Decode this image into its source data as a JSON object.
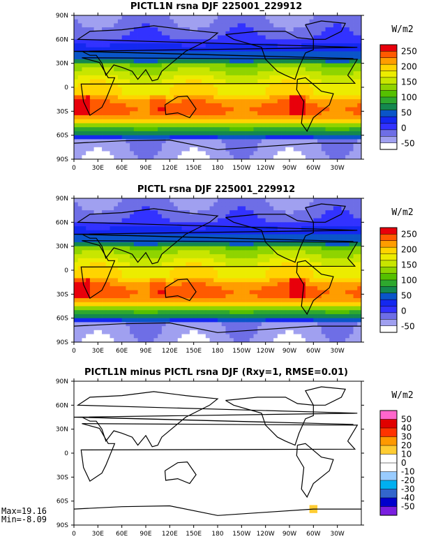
{
  "chart_data": [
    {
      "type": "heatmap",
      "title": "PICTL1N rsna DJF 225001_229912",
      "units": "W/m2",
      "xticks": [
        "0",
        "30E",
        "60E",
        "90E",
        "120E",
        "150E",
        "180",
        "150W",
        "120W",
        "90W",
        "60W",
        "30W"
      ],
      "yticks": [
        "90N",
        "60N",
        "30N",
        "0",
        "30S",
        "60S",
        "90S"
      ],
      "xlim": [
        0,
        360
      ],
      "ylim": [
        -90,
        90
      ],
      "colorbar": {
        "labels": [
          "250",
          "200",
          "150",
          "100",
          "50",
          "0",
          "-50"
        ],
        "colors": [
          "#e8000b",
          "#ff5a00",
          "#ff9d00",
          "#ffd400",
          "#ecec00",
          "#c8e600",
          "#8fd400",
          "#55c000",
          "#2ea82e",
          "#14884f",
          "#0a55c8",
          "#1428f0",
          "#3232ff",
          "#6e6ee6",
          "#a0a0f0",
          "#ffffff"
        ]
      },
      "values_summary": {
        "tropics_ocean": 200,
        "subtropics_south": 230,
        "northern_high_lat": 0,
        "antarctica": -25
      }
    },
    {
      "type": "heatmap",
      "title": "PICTL rsna DJF 225001_229912",
      "units": "W/m2",
      "xticks": [
        "0",
        "30E",
        "60E",
        "90E",
        "120E",
        "150E",
        "180",
        "150W",
        "120W",
        "90W",
        "60W",
        "30W"
      ],
      "yticks": [
        "90N",
        "60N",
        "30N",
        "0",
        "30S",
        "60S",
        "90S"
      ],
      "xlim": [
        0,
        360
      ],
      "ylim": [
        -90,
        90
      ],
      "colorbar": {
        "labels": [
          "250",
          "200",
          "150",
          "100",
          "50",
          "0",
          "-50"
        ],
        "colors": [
          "#e8000b",
          "#ff5a00",
          "#ff9d00",
          "#ffd400",
          "#ecec00",
          "#c8e600",
          "#8fd400",
          "#55c000",
          "#2ea82e",
          "#14884f",
          "#0a55c8",
          "#1428f0",
          "#3232ff",
          "#6e6ee6",
          "#a0a0f0",
          "#ffffff"
        ]
      },
      "values_summary": {
        "tropics_ocean": 200,
        "subtropics_south": 230,
        "northern_high_lat": 0,
        "antarctica": -25
      }
    },
    {
      "type": "heatmap",
      "title": "PICTL1N minus PICTL rsna DJF (Rxy=1, RMSE=0.01)",
      "units": "W/m2",
      "xticks": [
        "0",
        "30E",
        "60E",
        "90E",
        "120E",
        "150E",
        "180",
        "150W",
        "120W",
        "90W",
        "60W",
        "30W"
      ],
      "yticks": [
        "90N",
        "60N",
        "30N",
        "0",
        "30S",
        "60S",
        "90S"
      ],
      "xlim": [
        0,
        360
      ],
      "ylim": [
        -90,
        90
      ],
      "colorbar": {
        "labels": [
          "50",
          "40",
          "30",
          "20",
          "10",
          "0",
          "-10",
          "-20",
          "-30",
          "-40",
          "-50"
        ],
        "colors": [
          "#ff66cc",
          "#e00000",
          "#ff3300",
          "#ff9900",
          "#ffcc33",
          "#ffffff",
          "#ffffff",
          "#99ccff",
          "#00b0f0",
          "#3366cc",
          "#0000cc",
          "#7a1fe0"
        ]
      },
      "stats": {
        "max": "Max=19.16",
        "min": "Min=-8.09"
      },
      "values_summary": {
        "background": 0,
        "antarctic_patch": 15
      }
    }
  ]
}
